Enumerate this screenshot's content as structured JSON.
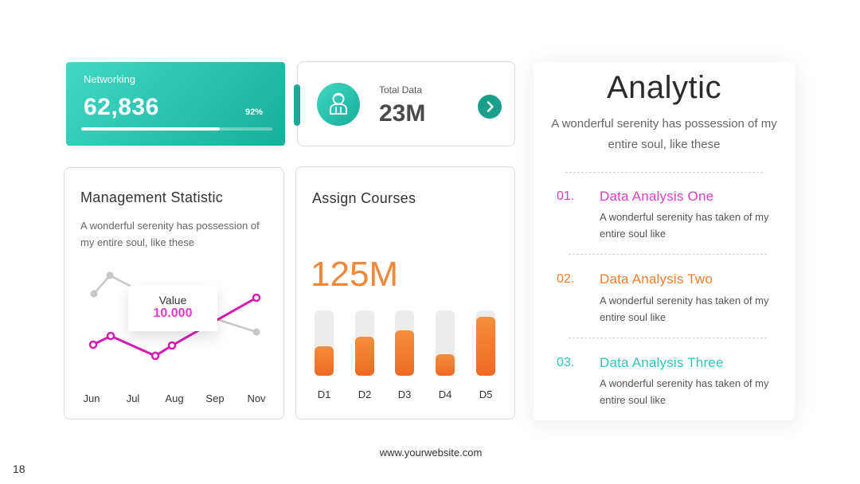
{
  "networking": {
    "label": "Networking",
    "value": "62,836",
    "percent_label": "92%",
    "progress": 0.92
  },
  "total_data": {
    "label": "Total Data",
    "value": "23M",
    "icon": "person-icon",
    "arrow_icon": "chevron-right-icon"
  },
  "management": {
    "title": "Management Statistic",
    "description": "A wonderful serenity has possession of my entire soul, like these",
    "tooltip": {
      "label": "Value",
      "value": "10.000"
    },
    "months": [
      "Jun",
      "Jul",
      "Aug",
      "Sep",
      "Nov"
    ],
    "colors": {
      "primary_line": "#d81bb3",
      "secondary_line": "#c7c7c7"
    }
  },
  "courses": {
    "title": "Assign Courses",
    "value": "125M",
    "bars": [
      {
        "label": "D1",
        "level": 0.45
      },
      {
        "label": "D2",
        "level": 0.6
      },
      {
        "label": "D3",
        "level": 0.7
      },
      {
        "label": "D4",
        "level": 0.33
      },
      {
        "label": "D5",
        "level": 0.9
      }
    ],
    "colors": {
      "bar": "#f07a2e",
      "track": "#ececec"
    }
  },
  "analytic": {
    "title": "Analytic",
    "subtitle": "A wonderful serenity has possession of my entire soul, like these",
    "items": [
      {
        "number": "01.",
        "title": "Data Analysis One",
        "description": "A wonderful serenity has taken of my entire soul like",
        "color": "#e03fbf"
      },
      {
        "number": "02.",
        "title": "Data Analysis Two",
        "description": "A wonderful serenity has taken of my entire soul like",
        "color": "#ef7d2c"
      },
      {
        "number": "03.",
        "title": "Data Analysis Three",
        "description": "A wonderful serenity has taken of my entire soul like",
        "color": "#2fc6b7"
      }
    ]
  },
  "footer": {
    "website": "www.yourwebsite.com",
    "page_number": "18"
  },
  "colors": {
    "accent": "#1fa89a",
    "accent_light": "#40d9c5"
  }
}
